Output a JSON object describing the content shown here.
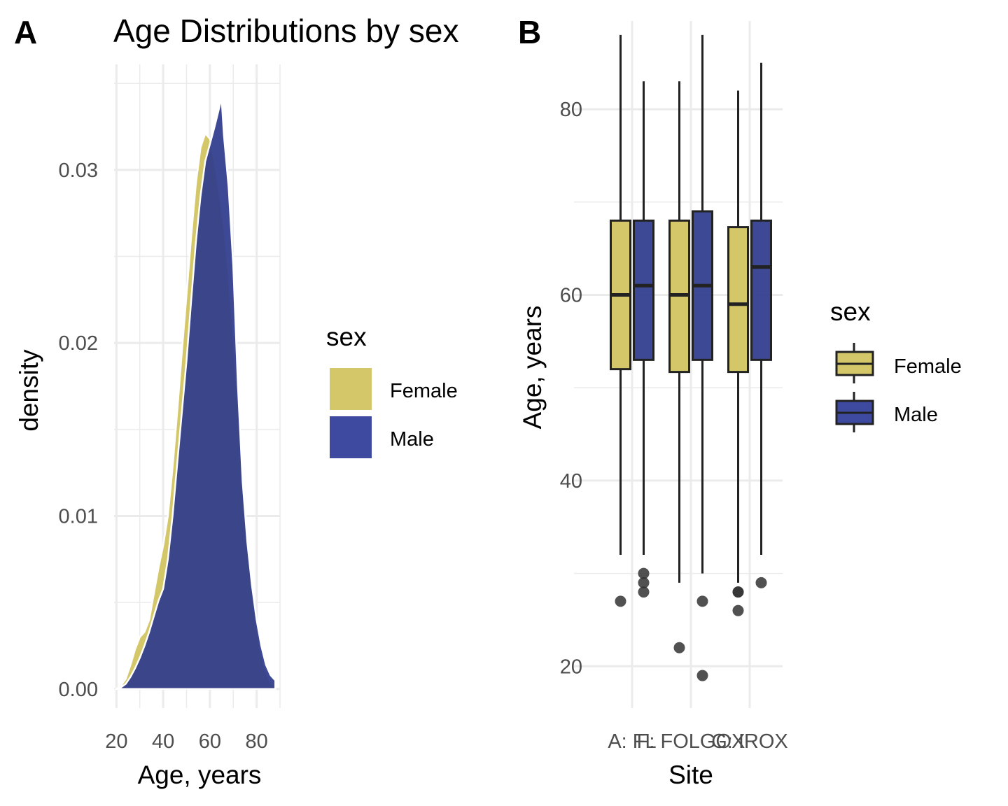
{
  "chart_data": [
    {
      "panel": "A",
      "type": "area",
      "title": "Age Distributions by sex",
      "xlabel": "Age, years",
      "ylabel": "density",
      "xlim": [
        19,
        90
      ],
      "ylim": [
        -0.0011,
        0.0361
      ],
      "x_ticks": [
        20,
        40,
        60,
        80
      ],
      "y_ticks": [
        0.0,
        0.01,
        0.02,
        0.03
      ],
      "y_tick_labels": [
        "0.00",
        "0.01",
        "0.02",
        "0.03"
      ],
      "grid": true,
      "legend": {
        "title": "sex",
        "placement": "right",
        "entries": [
          "Female",
          "Male"
        ]
      },
      "series": [
        {
          "name": "Female",
          "color": "#D4C76A",
          "x": [
            20,
            22,
            24,
            26,
            28,
            30,
            32,
            34,
            36,
            38,
            40,
            42,
            44,
            46,
            48,
            50,
            52,
            54,
            56,
            58,
            60,
            62,
            64,
            66,
            68,
            70,
            72,
            74,
            76,
            78,
            80,
            82,
            84,
            86,
            88
          ],
          "y": [
            0.0,
            0.0002,
            0.0006,
            0.0014,
            0.0023,
            0.003,
            0.0033,
            0.004,
            0.0055,
            0.007,
            0.0083,
            0.01,
            0.0128,
            0.016,
            0.0195,
            0.0228,
            0.0262,
            0.0292,
            0.0313,
            0.0321,
            0.0318,
            0.0305,
            0.0288,
            0.0268,
            0.024,
            0.0205,
            0.0165,
            0.0125,
            0.0088,
            0.0058,
            0.0036,
            0.002,
            0.001,
            0.0004,
            0.0001
          ]
        },
        {
          "name": "Male",
          "color": "#2E3A8C",
          "x": [
            20,
            22,
            24,
            26,
            28,
            30,
            32,
            34,
            36,
            38,
            40,
            42,
            44,
            46,
            48,
            50,
            52,
            54,
            56,
            58,
            60,
            62,
            64,
            65,
            66,
            68,
            70,
            72,
            74,
            76,
            78,
            80,
            82,
            84,
            86,
            88
          ],
          "y": [
            0.0,
            0.0001,
            0.0003,
            0.0007,
            0.0012,
            0.0018,
            0.0025,
            0.0033,
            0.0042,
            0.0051,
            0.0058,
            0.0075,
            0.01,
            0.013,
            0.016,
            0.019,
            0.0225,
            0.0258,
            0.0285,
            0.0305,
            0.0315,
            0.0325,
            0.0336,
            0.0342,
            0.032,
            0.029,
            0.0245,
            0.0175,
            0.012,
            0.0085,
            0.006,
            0.004,
            0.0025,
            0.0014,
            0.0008,
            0.0005
          ]
        }
      ]
    },
    {
      "panel": "B",
      "type": "box",
      "xlabel": "Site",
      "ylabel": "Age, years",
      "ylim": [
        15.5,
        89.5
      ],
      "y_ticks": [
        20,
        40,
        60,
        80
      ],
      "categories": [
        "A: FL",
        "F: FOLGOX",
        "G: IROX"
      ],
      "grid": true,
      "legend": {
        "title": "sex",
        "placement": "right",
        "entries": [
          "Female",
          "Male"
        ]
      },
      "series": [
        {
          "name": "Female",
          "color": "#D4C76A",
          "boxes": [
            {
              "whisker_low": 32,
              "q1": 52,
              "median": 60,
              "q3": 68,
              "whisker_high": 88,
              "outliers": [
                27
              ]
            },
            {
              "whisker_low": 29,
              "q1": 51.7,
              "median": 60,
              "q3": 68,
              "whisker_high": 83,
              "outliers": [
                22
              ]
            },
            {
              "whisker_low": 29,
              "q1": 51.7,
              "median": 59,
              "q3": 67.3,
              "whisker_high": 82,
              "outliers": [
                28,
                28,
                26
              ]
            }
          ]
        },
        {
          "name": "Male",
          "color": "#2E3A8C",
          "boxes": [
            {
              "whisker_low": 32,
              "q1": 53,
              "median": 61,
              "q3": 68,
              "whisker_high": 83,
              "outliers": [
                30,
                29,
                28
              ]
            },
            {
              "whisker_low": 30,
              "q1": 53,
              "median": 61,
              "q3": 69,
              "whisker_high": 88,
              "outliers": [
                27,
                19
              ]
            },
            {
              "whisker_low": 32,
              "q1": 53,
              "median": 63,
              "q3": 68,
              "whisker_high": 85,
              "outliers": [
                29
              ]
            }
          ]
        }
      ]
    }
  ]
}
